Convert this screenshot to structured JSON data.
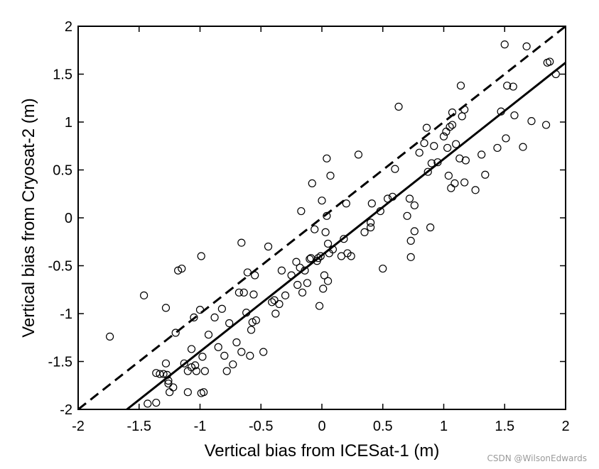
{
  "chart_data": {
    "type": "scatter",
    "title": "",
    "xlabel": "Vertical bias from ICESat-1 (m)",
    "ylabel": "Vertical bias from Cryosat-2 (m)",
    "xlim": [
      -2,
      2
    ],
    "ylim": [
      -2,
      2
    ],
    "xticks": [
      "-2",
      "-1.5",
      "-1",
      "-0.5",
      "0",
      "0.5",
      "1",
      "1.5",
      "2"
    ],
    "yticks": [
      "-2",
      "-1.5",
      "-1",
      "-0.5",
      "0",
      "0.5",
      "1",
      "1.5",
      "2"
    ],
    "grid": false,
    "series": [
      {
        "name": "observations",
        "marker": "circle-open",
        "points": [
          [
            -1.74,
            -1.24
          ],
          [
            -1.46,
            -0.81
          ],
          [
            -1.43,
            -1.94
          ],
          [
            -1.36,
            -1.62
          ],
          [
            -1.36,
            -1.93
          ],
          [
            -1.33,
            -1.63
          ],
          [
            -1.3,
            -1.63
          ],
          [
            -1.28,
            -1.52
          ],
          [
            -1.28,
            -0.94
          ],
          [
            -1.27,
            -1.64
          ],
          [
            -1.26,
            -1.7
          ],
          [
            -1.26,
            -1.73
          ],
          [
            -1.25,
            -1.82
          ],
          [
            -1.22,
            -1.77
          ],
          [
            -1.2,
            -1.2
          ],
          [
            -1.18,
            -0.55
          ],
          [
            -1.15,
            -0.53
          ],
          [
            -1.13,
            -1.52
          ],
          [
            -1.1,
            -1.82
          ],
          [
            -1.1,
            -1.6
          ],
          [
            -1.07,
            -1.56
          ],
          [
            -1.07,
            -1.37
          ],
          [
            -1.05,
            -1.04
          ],
          [
            -1.04,
            -1.54
          ],
          [
            -1.03,
            -1.6
          ],
          [
            -1.0,
            -0.96
          ],
          [
            -0.99,
            -1.83
          ],
          [
            -0.99,
            -0.4
          ],
          [
            -0.98,
            -1.45
          ],
          [
            -0.97,
            -1.82
          ],
          [
            -0.96,
            -1.6
          ],
          [
            -0.93,
            -1.22
          ],
          [
            -0.88,
            -1.04
          ],
          [
            -0.85,
            -1.35
          ],
          [
            -0.82,
            -0.95
          ],
          [
            -0.8,
            -1.44
          ],
          [
            -0.78,
            -1.6
          ],
          [
            -0.76,
            -1.1
          ],
          [
            -0.73,
            -1.53
          ],
          [
            -0.7,
            -1.3
          ],
          [
            -0.68,
            -0.78
          ],
          [
            -0.66,
            -1.4
          ],
          [
            -0.66,
            -0.26
          ],
          [
            -0.64,
            -0.78
          ],
          [
            -0.62,
            -0.99
          ],
          [
            -0.61,
            -0.57
          ],
          [
            -0.59,
            -1.44
          ],
          [
            -0.58,
            -1.17
          ],
          [
            -0.57,
            -1.09
          ],
          [
            -0.56,
            -0.8
          ],
          [
            -0.55,
            -0.6
          ],
          [
            -0.54,
            -1.07
          ],
          [
            -0.48,
            -1.4
          ],
          [
            -0.44,
            -0.3
          ],
          [
            -0.41,
            -0.88
          ],
          [
            -0.39,
            -0.86
          ],
          [
            -0.38,
            -1.0
          ],
          [
            -0.35,
            -0.9
          ],
          [
            -0.33,
            -0.55
          ],
          [
            -0.3,
            -0.81
          ],
          [
            -0.25,
            -0.6
          ],
          [
            -0.21,
            -0.46
          ],
          [
            -0.2,
            -0.7
          ],
          [
            -0.18,
            -0.52
          ],
          [
            -0.17,
            0.07
          ],
          [
            -0.16,
            -0.78
          ],
          [
            -0.14,
            -0.55
          ],
          [
            -0.12,
            -0.68
          ],
          [
            -0.1,
            -0.43
          ],
          [
            -0.09,
            -0.42
          ],
          [
            -0.08,
            0.36
          ],
          [
            -0.06,
            -0.12
          ],
          [
            -0.04,
            -0.45
          ],
          [
            -0.03,
            -0.42
          ],
          [
            -0.02,
            -0.92
          ],
          [
            -0.01,
            -0.4
          ],
          [
            0.0,
            0.18
          ],
          [
            0.01,
            -0.74
          ],
          [
            0.02,
            -0.6
          ],
          [
            0.03,
            -0.15
          ],
          [
            0.04,
            0.02
          ],
          [
            0.04,
            0.62
          ],
          [
            0.05,
            -0.66
          ],
          [
            0.05,
            -0.27
          ],
          [
            0.06,
            -0.37
          ],
          [
            0.07,
            0.44
          ],
          [
            0.09,
            -0.33
          ],
          [
            0.16,
            -0.4
          ],
          [
            0.18,
            -0.22
          ],
          [
            0.2,
            0.15
          ],
          [
            0.21,
            -0.37
          ],
          [
            0.24,
            -0.4
          ],
          [
            0.3,
            0.66
          ],
          [
            0.35,
            -0.15
          ],
          [
            0.4,
            -0.1
          ],
          [
            0.4,
            -0.05
          ],
          [
            0.41,
            0.15
          ],
          [
            0.48,
            0.07
          ],
          [
            0.5,
            -0.53
          ],
          [
            0.54,
            0.2
          ],
          [
            0.58,
            0.22
          ],
          [
            0.6,
            0.51
          ],
          [
            0.63,
            1.16
          ],
          [
            0.7,
            0.02
          ],
          [
            0.72,
            0.2
          ],
          [
            0.73,
            -0.24
          ],
          [
            0.73,
            -0.41
          ],
          [
            0.76,
            -0.14
          ],
          [
            0.76,
            0.13
          ],
          [
            0.8,
            0.68
          ],
          [
            0.84,
            0.78
          ],
          [
            0.86,
            0.94
          ],
          [
            0.87,
            0.48
          ],
          [
            0.89,
            -0.1
          ],
          [
            0.9,
            0.57
          ],
          [
            0.92,
            0.75
          ],
          [
            0.95,
            0.58
          ],
          [
            1.0,
            0.85
          ],
          [
            1.02,
            0.9
          ],
          [
            1.03,
            0.73
          ],
          [
            1.04,
            0.44
          ],
          [
            1.05,
            0.95
          ],
          [
            1.06,
            0.31
          ],
          [
            1.07,
            0.97
          ],
          [
            1.07,
            1.1
          ],
          [
            1.09,
            0.36
          ],
          [
            1.1,
            0.77
          ],
          [
            1.13,
            0.62
          ],
          [
            1.14,
            1.38
          ],
          [
            1.15,
            1.06
          ],
          [
            1.17,
            0.37
          ],
          [
            1.17,
            1.13
          ],
          [
            1.18,
            0.6
          ],
          [
            1.26,
            0.29
          ],
          [
            1.31,
            0.66
          ],
          [
            1.34,
            0.45
          ],
          [
            1.44,
            0.73
          ],
          [
            1.47,
            1.11
          ],
          [
            1.5,
            1.81
          ],
          [
            1.51,
            0.83
          ],
          [
            1.52,
            1.38
          ],
          [
            1.57,
            1.37
          ],
          [
            1.58,
            1.07
          ],
          [
            1.65,
            0.74
          ],
          [
            1.68,
            1.79
          ],
          [
            1.72,
            1.01
          ],
          [
            1.84,
            0.97
          ],
          [
            1.85,
            1.62
          ],
          [
            1.87,
            1.63
          ],
          [
            1.92,
            1.5
          ]
        ]
      },
      {
        "name": "identity line (1:1)",
        "style": "dashed",
        "line": [
          [
            -2,
            -2
          ],
          [
            2,
            2
          ]
        ]
      },
      {
        "name": "regression fit",
        "style": "solid",
        "line": [
          [
            -1.6,
            -2
          ],
          [
            2,
            1.62
          ]
        ]
      }
    ]
  },
  "watermark": "CSDN @WilsonEdwards"
}
